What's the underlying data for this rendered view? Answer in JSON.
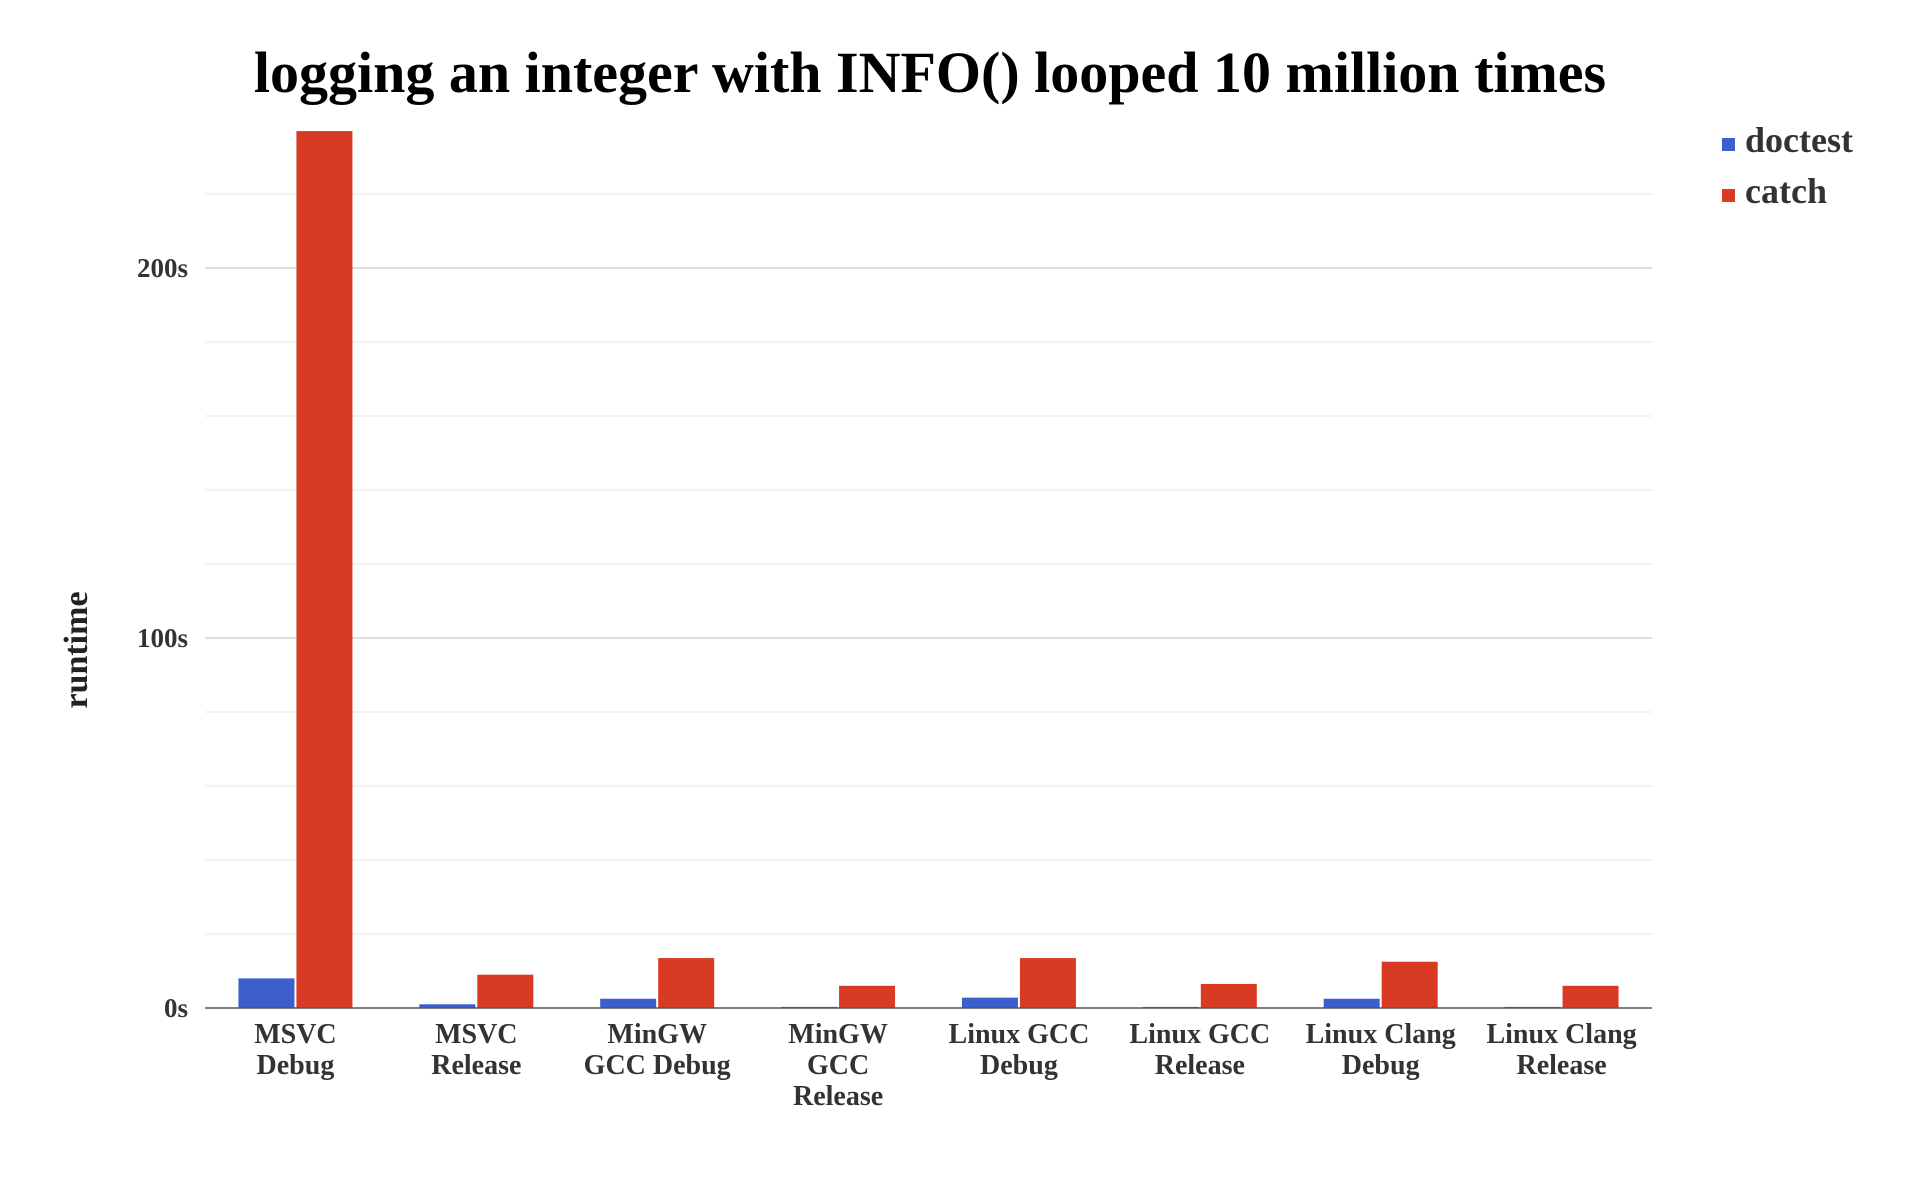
{
  "chart_data": {
    "type": "bar",
    "title": "logging an integer with INFO() looped 10 million times",
    "ylabel": "runtime",
    "xlabel": "",
    "ylim": [
      0,
      230
    ],
    "yticks": [
      {
        "value": 0,
        "label": "0s"
      },
      {
        "value": 100,
        "label": "100s"
      },
      {
        "value": 200,
        "label": "200s"
      }
    ],
    "minor_grid_step": 20,
    "grid": true,
    "legend_position": "top-right",
    "categories": [
      [
        "MSVC",
        "Debug"
      ],
      [
        "MSVC",
        "Release"
      ],
      [
        "MinGW",
        "GCC Debug"
      ],
      [
        "MinGW",
        "GCC",
        "Release"
      ],
      [
        "Linux GCC",
        "Debug"
      ],
      [
        "Linux GCC",
        "Release"
      ],
      [
        "Linux Clang",
        "Debug"
      ],
      [
        "Linux Clang",
        "Release"
      ]
    ],
    "series": [
      {
        "name": "doctest",
        "color": "#3c5fcd",
        "values": [
          8,
          1,
          2.5,
          0.3,
          2.8,
          0.3,
          2.5,
          0.3
        ]
      },
      {
        "name": "catch",
        "color": "#d93a24",
        "values": [
          237,
          9,
          13.5,
          6,
          13.5,
          6.5,
          12.5,
          6
        ]
      }
    ]
  }
}
